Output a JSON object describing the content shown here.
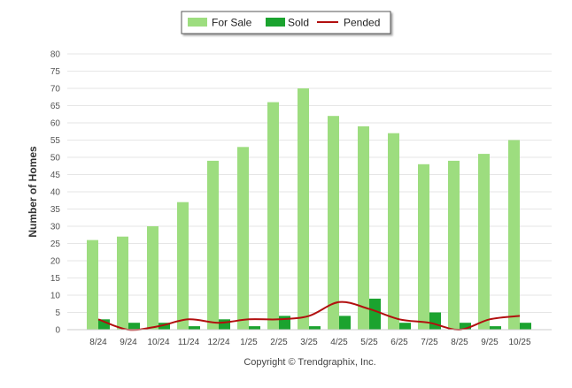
{
  "chart_data": {
    "type": "bar",
    "categories": [
      "8/24",
      "9/24",
      "10/24",
      "11/24",
      "12/24",
      "1/25",
      "2/25",
      "3/25",
      "4/25",
      "5/25",
      "6/25",
      "7/25",
      "8/25",
      "9/25",
      "10/25"
    ],
    "series": [
      {
        "name": "For Sale",
        "kind": "bar",
        "color": "#9ddd7f",
        "values": [
          26,
          27,
          30,
          37,
          49,
          53,
          66,
          70,
          62,
          59,
          57,
          48,
          49,
          51,
          55
        ]
      },
      {
        "name": "Sold",
        "kind": "bar",
        "color": "#1ba32f",
        "values": [
          3,
          2,
          2,
          1,
          3,
          1,
          4,
          1,
          4,
          9,
          2,
          5,
          2,
          1,
          2
        ]
      },
      {
        "name": "Pended",
        "kind": "line",
        "color": "#b20f0f",
        "values": [
          3,
          0,
          1,
          3,
          2,
          3,
          3,
          4,
          8,
          6,
          3,
          2,
          0,
          3,
          4
        ]
      }
    ],
    "ylabel": "Number of Homes",
    "xlabel": "",
    "ylim": [
      0,
      80
    ],
    "yticks": [
      0,
      5,
      10,
      15,
      20,
      25,
      30,
      35,
      40,
      45,
      50,
      55,
      60,
      65,
      70,
      75,
      80
    ],
    "grid": true,
    "legend_position": "top-center",
    "credit": "Copyright © Trendgraphix, Inc."
  }
}
